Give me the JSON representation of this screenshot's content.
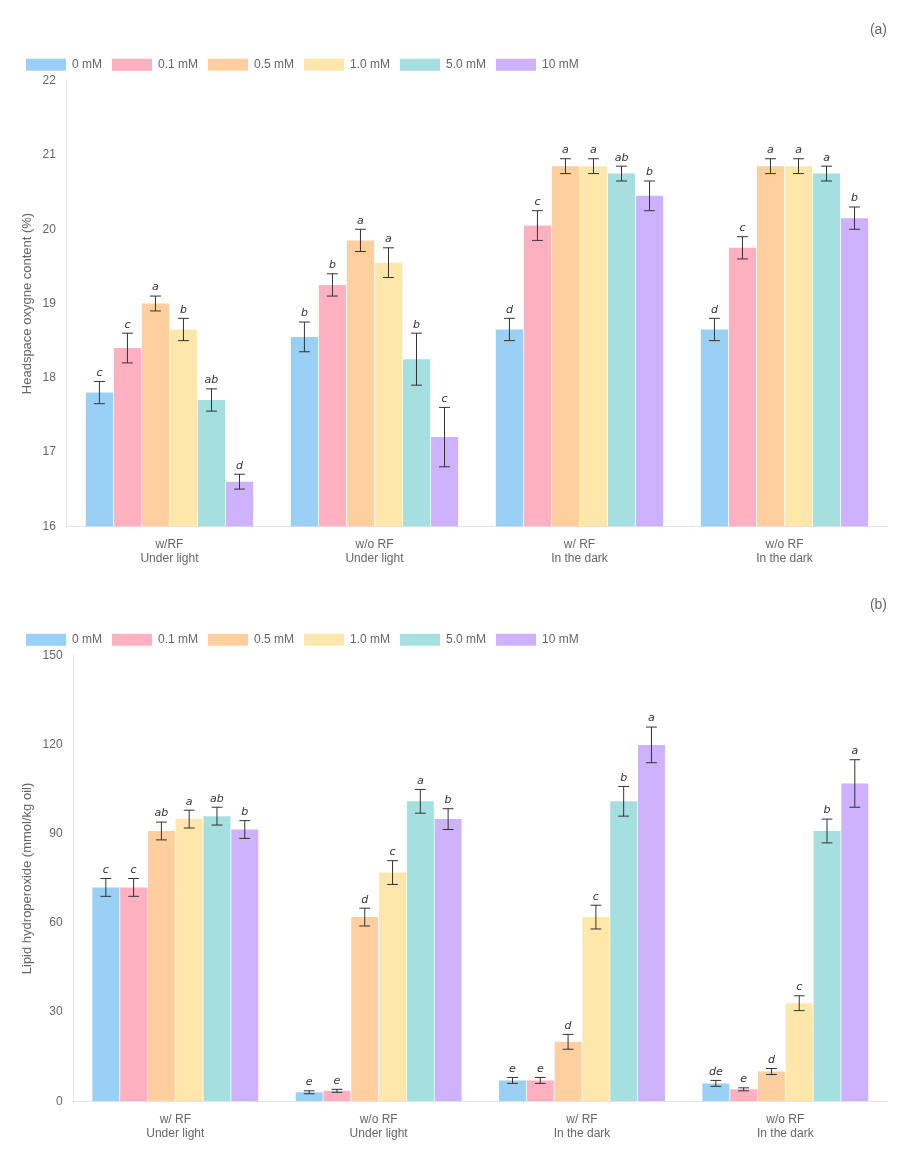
{
  "chart_data": [
    {
      "type": "bar",
      "title": "(a)",
      "ylabel": "Headspace oxygne content (%)",
      "categories": [
        "w/RF\nUnder light",
        "w/o RF\nUnder light",
        "w/ RF\nIn the dark",
        "w/o RF\nIn the dark"
      ],
      "series": [
        {
          "name": "0 mM",
          "values": [
            17.8,
            18.55,
            18.65,
            18.65
          ],
          "errors": [
            0.15,
            0.2,
            0.15,
            0.15
          ],
          "sig_labels": [
            "c",
            "b",
            "d",
            "d"
          ]
        },
        {
          "name": "0.1 mM",
          "values": [
            18.4,
            19.25,
            20.05,
            19.75
          ],
          "errors": [
            0.2,
            0.15,
            0.2,
            0.15
          ],
          "sig_labels": [
            "c",
            "b",
            "c",
            "c"
          ]
        },
        {
          "name": "0.5 mM",
          "values": [
            19.0,
            19.85,
            20.85,
            20.85
          ],
          "errors": [
            0.1,
            0.15,
            0.1,
            0.1
          ],
          "sig_labels": [
            "a",
            "a",
            "a",
            "a"
          ]
        },
        {
          "name": "1.0 mM",
          "values": [
            18.65,
            19.55,
            20.85,
            20.85
          ],
          "errors": [
            0.15,
            0.2,
            0.1,
            0.1
          ],
          "sig_labels": [
            "b",
            "a",
            "a",
            "a"
          ]
        },
        {
          "name": "5.0 mM",
          "values": [
            17.7,
            18.25,
            20.75,
            20.75
          ],
          "errors": [
            0.15,
            0.35,
            0.1,
            0.1
          ],
          "sig_labels": [
            "ab",
            "b",
            "ab",
            "a"
          ]
        },
        {
          "name": "10 mM",
          "values": [
            16.6,
            17.2,
            20.45,
            20.15
          ],
          "errors": [
            0.1,
            0.4,
            0.2,
            0.15
          ],
          "sig_labels": [
            "d",
            "c",
            "b",
            "b"
          ]
        }
      ],
      "ylim": [
        16,
        22
      ],
      "yticks": [
        16,
        17,
        18,
        19,
        20,
        21,
        22
      ],
      "grid": false,
      "legend": "upper left"
    },
    {
      "type": "bar",
      "title": "(b)",
      "ylabel": "Lipid hydroperoxide (mmol/kg oil)",
      "categories": [
        "w/ RF\nUnder light",
        "w/o RF\nUnder light",
        "w/ RF\nIn the dark",
        "w/o RF\nIn the dark"
      ],
      "series": [
        {
          "name": "0 mM",
          "values": [
            72.0,
            3.0,
            7.0,
            6.0
          ],
          "errors": [
            3.0,
            0.5,
            1.0,
            1.0
          ],
          "sig_labels": [
            "c",
            "e",
            "e",
            "de"
          ]
        },
        {
          "name": "0.1 mM",
          "values": [
            72.0,
            3.5,
            7.0,
            4.0
          ],
          "errors": [
            3.0,
            0.5,
            1.0,
            0.5
          ],
          "sig_labels": [
            "c",
            "e",
            "e",
            "e"
          ]
        },
        {
          "name": "0.5 mM",
          "values": [
            91.0,
            62.0,
            20.0,
            10.0
          ],
          "errors": [
            3.0,
            3.0,
            2.5,
            1.0
          ],
          "sig_labels": [
            "ab",
            "d",
            "d",
            "d"
          ]
        },
        {
          "name": "1.0 mM",
          "values": [
            95.0,
            77.0,
            62.0,
            33.0
          ],
          "errors": [
            3.0,
            4.0,
            4.0,
            2.5
          ],
          "sig_labels": [
            "a",
            "c",
            "c",
            "c"
          ]
        },
        {
          "name": "5.0 mM",
          "values": [
            96.0,
            101.0,
            101.0,
            91.0
          ],
          "errors": [
            3.0,
            4.0,
            5.0,
            4.0
          ],
          "sig_labels": [
            "ab",
            "a",
            "b",
            "b"
          ]
        },
        {
          "name": "10 mM",
          "values": [
            91.5,
            95.0,
            120.0,
            107.0
          ],
          "errors": [
            3.0,
            3.5,
            6.0,
            8.0
          ],
          "sig_labels": [
            "b",
            "b",
            "a",
            "a"
          ]
        }
      ],
      "ylim": [
        0,
        150
      ],
      "yticks": [
        0,
        30,
        60,
        90,
        120,
        150
      ],
      "grid": false,
      "legend": "upper left"
    }
  ]
}
